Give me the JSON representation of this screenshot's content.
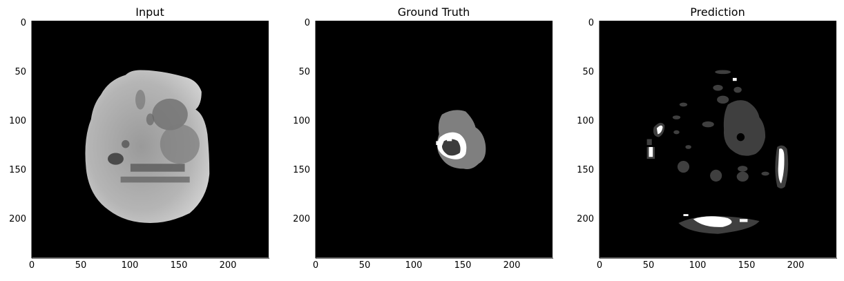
{
  "panels": [
    {
      "title": "Input"
    },
    {
      "title": "Ground Truth"
    },
    {
      "title": "Prediction"
    }
  ],
  "axis": {
    "range": [
      0,
      240
    ],
    "y_ticks": [
      {
        "value": 0,
        "label": "0"
      },
      {
        "value": 50,
        "label": "50"
      },
      {
        "value": 100,
        "label": "100"
      },
      {
        "value": 150,
        "label": "150"
      },
      {
        "value": 200,
        "label": "200"
      }
    ],
    "x_ticks": [
      {
        "value": 0,
        "label": "0"
      },
      {
        "value": 50,
        "label": "50"
      },
      {
        "value": 100,
        "label": "100"
      },
      {
        "value": 150,
        "label": "150"
      },
      {
        "value": 200,
        "label": "200"
      }
    ]
  },
  "colors": {
    "background": "#000000",
    "axis": "#000000",
    "gt_gray": "#7f7f7f",
    "gt_dark": "#3c3c3c",
    "gt_white": "#ffffff",
    "pred_dark": "#3f3f3f",
    "pred_white": "#ffffff"
  }
}
